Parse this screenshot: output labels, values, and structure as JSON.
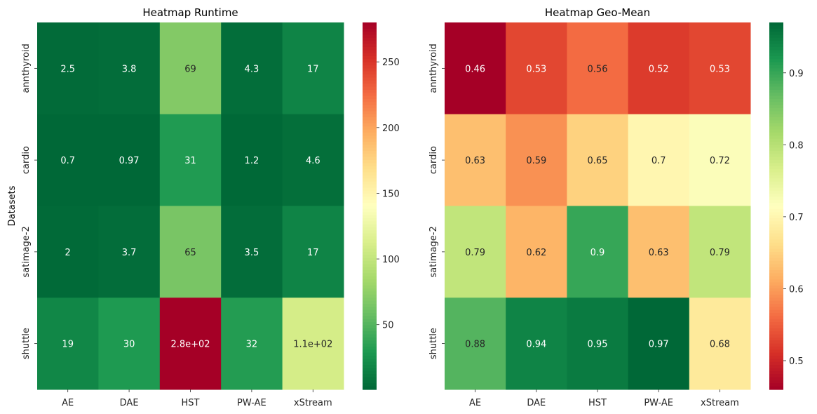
{
  "chart_data": [
    {
      "type": "heatmap",
      "title": "Heatmap Runtime",
      "xlabel": "",
      "ylabel": "Datasets",
      "x_categories": [
        "AE",
        "DAE",
        "HST",
        "PW-AE",
        "xStream"
      ],
      "y_categories": [
        "annthyroid",
        "cardio",
        "satimage-2",
        "shuttle"
      ],
      "values": [
        [
          2.5,
          3.8,
          69,
          4.3,
          17
        ],
        [
          0.7,
          0.97,
          31,
          1.2,
          4.6
        ],
        [
          2,
          3.7,
          65,
          3.5,
          17
        ],
        [
          19,
          30,
          280,
          32,
          110
        ]
      ],
      "annotations": [
        [
          "2.5",
          "3.8",
          "69",
          "4.3",
          "17"
        ],
        [
          "0.7",
          "0.97",
          "31",
          "1.2",
          "4.6"
        ],
        [
          "2",
          "3.7",
          "65",
          "3.5",
          "17"
        ],
        [
          "19",
          "30",
          "2.8e+02",
          "32",
          "1.1e+02"
        ]
      ],
      "colormap": "RdYlGn_r",
      "colorbar": {
        "vmin": 0.7,
        "vmax": 280,
        "ticks": [
          50,
          100,
          150,
          200,
          250
        ]
      }
    },
    {
      "type": "heatmap",
      "title": "Heatmap Geo-Mean",
      "xlabel": "",
      "ylabel": "",
      "x_categories": [
        "AE",
        "DAE",
        "HST",
        "PW-AE",
        "xStream"
      ],
      "y_categories": [
        "annthyroid",
        "cardio",
        "satimage-2",
        "shuttle"
      ],
      "values": [
        [
          0.46,
          0.53,
          0.56,
          0.52,
          0.53
        ],
        [
          0.63,
          0.59,
          0.65,
          0.7,
          0.72
        ],
        [
          0.79,
          0.62,
          0.9,
          0.63,
          0.79
        ],
        [
          0.88,
          0.94,
          0.95,
          0.97,
          0.68
        ]
      ],
      "annotations": [
        [
          "0.46",
          "0.53",
          "0.56",
          "0.52",
          "0.53"
        ],
        [
          "0.63",
          "0.59",
          "0.65",
          "0.7",
          "0.72"
        ],
        [
          "0.79",
          "0.62",
          "0.9",
          "0.63",
          "0.79"
        ],
        [
          "0.88",
          "0.94",
          "0.95",
          "0.97",
          "0.68"
        ]
      ],
      "colormap": "RdYlGn",
      "colorbar": {
        "vmin": 0.46,
        "vmax": 0.97,
        "ticks": [
          0.5,
          0.6,
          0.7,
          0.8,
          0.9
        ]
      }
    }
  ],
  "colors": {
    "RdYlGn": [
      "#a50026",
      "#d73027",
      "#f46d43",
      "#fdae61",
      "#fee08b",
      "#ffffbf",
      "#d9ef8b",
      "#a6d96a",
      "#66bd63",
      "#1a9850",
      "#006837"
    ]
  }
}
